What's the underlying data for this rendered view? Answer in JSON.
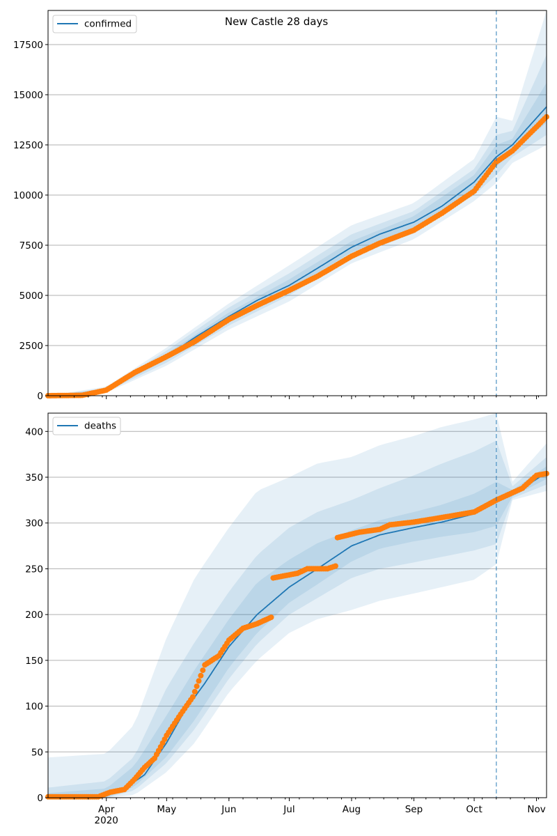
{
  "figure": {
    "title": "New Castle 28 days"
  },
  "colors": {
    "model": "#1f77b4",
    "observed": "#ff7f0e",
    "band": "#1f77b4",
    "grid": "#b0b0b0"
  },
  "chart_data": [
    {
      "type": "line",
      "panel": "top",
      "legend": {
        "label": "confirmed",
        "placement": "top-left"
      },
      "x_axis": {
        "type": "date",
        "range": [
          "2020-03-03",
          "2020-11-06"
        ],
        "ticks": []
      },
      "ylim": [
        0,
        19200
      ],
      "yticks": [
        0,
        2500,
        5000,
        7500,
        10000,
        12500,
        15000,
        17500
      ],
      "grid": "horizontal",
      "forecast_start": "2020-10-12",
      "series": [
        {
          "name": "confirmed",
          "role": "model",
          "x": [
            "2020-03-03",
            "2020-03-20",
            "2020-04-01",
            "2020-04-15",
            "2020-05-01",
            "2020-05-15",
            "2020-06-01",
            "2020-06-15",
            "2020-07-01",
            "2020-07-15",
            "2020-08-01",
            "2020-08-15",
            "2020-09-01",
            "2020-09-15",
            "2020-10-01",
            "2020-10-12",
            "2020-10-20",
            "2020-11-06"
          ],
          "values": [
            0,
            20,
            280,
            1150,
            1950,
            2900,
            3950,
            4750,
            5500,
            6350,
            7400,
            8050,
            8650,
            9450,
            10650,
            11900,
            12500,
            14400
          ]
        },
        {
          "name": "confirmed observed",
          "role": "observed",
          "x": [
            "2020-03-03",
            "2020-03-20",
            "2020-04-01",
            "2020-04-15",
            "2020-05-01",
            "2020-05-15",
            "2020-06-01",
            "2020-06-15",
            "2020-07-01",
            "2020-07-15",
            "2020-08-01",
            "2020-08-15",
            "2020-09-01",
            "2020-09-15",
            "2020-10-01",
            "2020-10-12",
            "2020-10-20",
            "2020-11-06"
          ],
          "values": [
            0,
            20,
            280,
            1150,
            1950,
            2700,
            3800,
            4500,
            5250,
            5950,
            6950,
            7600,
            8250,
            9100,
            10200,
            11650,
            12200,
            13900
          ]
        }
      ],
      "bands": [
        {
          "x": [
            "2020-03-03",
            "2020-04-01",
            "2020-05-01",
            "2020-06-01",
            "2020-07-01",
            "2020-08-01",
            "2020-09-01",
            "2020-10-01",
            "2020-10-12",
            "2020-10-20",
            "2020-11-06"
          ],
          "lower": [
            0,
            150,
            1500,
            3300,
            4700,
            6600,
            7800,
            9700,
            10600,
            11600,
            12500
          ],
          "upper": [
            0,
            450,
            2400,
            4600,
            6500,
            8500,
            9600,
            11800,
            13900,
            13700,
            19200
          ]
        },
        {
          "x": [
            "2020-03-03",
            "2020-04-01",
            "2020-05-01",
            "2020-06-01",
            "2020-07-01",
            "2020-08-01",
            "2020-09-01",
            "2020-10-01",
            "2020-10-12",
            "2020-10-20",
            "2020-11-06"
          ],
          "lower": [
            0,
            200,
            1650,
            3500,
            5000,
            6900,
            8100,
            10000,
            11000,
            11900,
            13000
          ],
          "upper": [
            0,
            380,
            2250,
            4400,
            6100,
            8050,
            9200,
            11300,
            13000,
            13200,
            17000
          ]
        },
        {
          "x": [
            "2020-03-03",
            "2020-04-01",
            "2020-05-01",
            "2020-06-01",
            "2020-07-01",
            "2020-08-01",
            "2020-09-01",
            "2020-10-01",
            "2020-10-12",
            "2020-10-20",
            "2020-11-06"
          ],
          "lower": [
            0,
            240,
            1800,
            3750,
            5250,
            7150,
            8350,
            10300,
            11400,
            12200,
            13600
          ],
          "upper": [
            0,
            330,
            2100,
            4150,
            5800,
            7700,
            8950,
            11000,
            12500,
            12800,
            15600
          ]
        }
      ]
    },
    {
      "type": "line",
      "panel": "bottom",
      "legend": {
        "label": "deaths",
        "placement": "top-left"
      },
      "x_axis": {
        "type": "date",
        "range": [
          "2020-03-03",
          "2020-11-06"
        ],
        "ticks": [
          {
            "date": "2020-04-01",
            "label": "Apr",
            "sublabel": "2020"
          },
          {
            "date": "2020-05-01",
            "label": "May"
          },
          {
            "date": "2020-06-01",
            "label": "Jun"
          },
          {
            "date": "2020-07-01",
            "label": "Jul"
          },
          {
            "date": "2020-08-01",
            "label": "Aug"
          },
          {
            "date": "2020-09-01",
            "label": "Sep"
          },
          {
            "date": "2020-10-01",
            "label": "Oct"
          },
          {
            "date": "2020-11-01",
            "label": "Nov"
          }
        ]
      },
      "ylim": [
        0,
        420
      ],
      "yticks": [
        0,
        50,
        100,
        150,
        200,
        250,
        300,
        350,
        400
      ],
      "grid": "horizontal",
      "forecast_start": "2020-10-12",
      "series": [
        {
          "name": "deaths",
          "role": "model",
          "x": [
            "2020-03-03",
            "2020-03-25",
            "2020-04-01",
            "2020-04-10",
            "2020-04-20",
            "2020-05-01",
            "2020-05-10",
            "2020-05-20",
            "2020-06-01",
            "2020-06-15",
            "2020-07-01",
            "2020-07-15",
            "2020-08-01",
            "2020-08-15",
            "2020-09-01",
            "2020-09-15",
            "2020-10-01",
            "2020-10-12",
            "2020-10-25",
            "2020-11-06"
          ],
          "values": [
            0,
            0,
            2,
            10,
            25,
            60,
            95,
            125,
            165,
            200,
            230,
            250,
            275,
            287,
            295,
            301,
            310,
            325,
            338,
            355
          ]
        },
        {
          "name": "deaths observed",
          "role": "observed",
          "x": [
            "2020-03-03",
            "2020-03-28",
            "2020-04-03",
            "2020-04-10",
            "2020-04-15",
            "2020-04-20",
            "2020-04-25",
            "2020-05-01",
            "2020-05-07",
            "2020-05-14",
            "2020-05-20",
            "2020-05-27",
            "2020-06-01",
            "2020-06-08",
            "2020-06-15",
            "2020-06-22",
            "2020-06-23",
            "2020-07-05",
            "2020-07-10",
            "2020-07-20",
            "2020-07-24",
            "2020-07-25",
            "2020-08-05",
            "2020-08-15",
            "2020-08-20",
            "2020-09-01",
            "2020-09-15",
            "2020-10-01",
            "2020-10-12",
            "2020-10-25",
            "2020-11-01",
            "2020-11-06"
          ],
          "values": [
            1,
            1,
            6,
            9,
            20,
            33,
            43,
            68,
            88,
            110,
            145,
            155,
            172,
            185,
            190,
            197,
            240,
            245,
            250,
            250,
            253,
            284,
            290,
            293,
            298,
            301,
            306,
            312,
            325,
            338,
            352,
            354
          ]
        }
      ],
      "bands": [
        {
          "x": [
            "2020-03-03",
            "2020-04-01",
            "2020-04-15",
            "2020-05-01",
            "2020-05-15",
            "2020-06-01",
            "2020-06-15",
            "2020-07-01",
            "2020-07-15",
            "2020-08-01",
            "2020-08-15",
            "2020-09-01",
            "2020-09-15",
            "2020-10-01",
            "2020-10-12",
            "2020-10-20",
            "2020-11-06"
          ],
          "lower": [
            0,
            0,
            3,
            28,
            60,
            115,
            150,
            180,
            195,
            205,
            215,
            223,
            230,
            238,
            255,
            325,
            335
          ],
          "upper": [
            44,
            48,
            80,
            175,
            240,
            295,
            335,
            350,
            365,
            372,
            385,
            395,
            405,
            413,
            420,
            345,
            387
          ]
        },
        {
          "x": [
            "2020-03-03",
            "2020-04-01",
            "2020-04-15",
            "2020-05-01",
            "2020-05-15",
            "2020-06-01",
            "2020-06-15",
            "2020-07-01",
            "2020-07-15",
            "2020-08-01",
            "2020-08-15",
            "2020-09-01",
            "2020-09-15",
            "2020-10-01",
            "2020-10-12",
            "2020-10-20",
            "2020-11-06"
          ],
          "lower": [
            0,
            0,
            8,
            38,
            75,
            130,
            168,
            200,
            218,
            240,
            250,
            257,
            263,
            270,
            277,
            327,
            342
          ],
          "upper": [
            11,
            18,
            45,
            120,
            170,
            225,
            265,
            295,
            312,
            325,
            338,
            352,
            365,
            378,
            390,
            340,
            372
          ]
        },
        {
          "x": [
            "2020-03-03",
            "2020-04-01",
            "2020-04-15",
            "2020-05-01",
            "2020-05-15",
            "2020-06-01",
            "2020-06-15",
            "2020-07-01",
            "2020-07-15",
            "2020-08-01",
            "2020-08-15",
            "2020-09-01",
            "2020-09-15",
            "2020-10-01",
            "2020-10-12",
            "2020-10-20",
            "2020-11-06"
          ],
          "lower": [
            0,
            0,
            12,
            45,
            85,
            142,
            180,
            213,
            233,
            258,
            272,
            280,
            285,
            290,
            297,
            329,
            348
          ],
          "upper": [
            5,
            10,
            35,
            90,
            140,
            195,
            235,
            260,
            278,
            292,
            303,
            312,
            320,
            332,
            345,
            336,
            362
          ]
        }
      ]
    }
  ]
}
